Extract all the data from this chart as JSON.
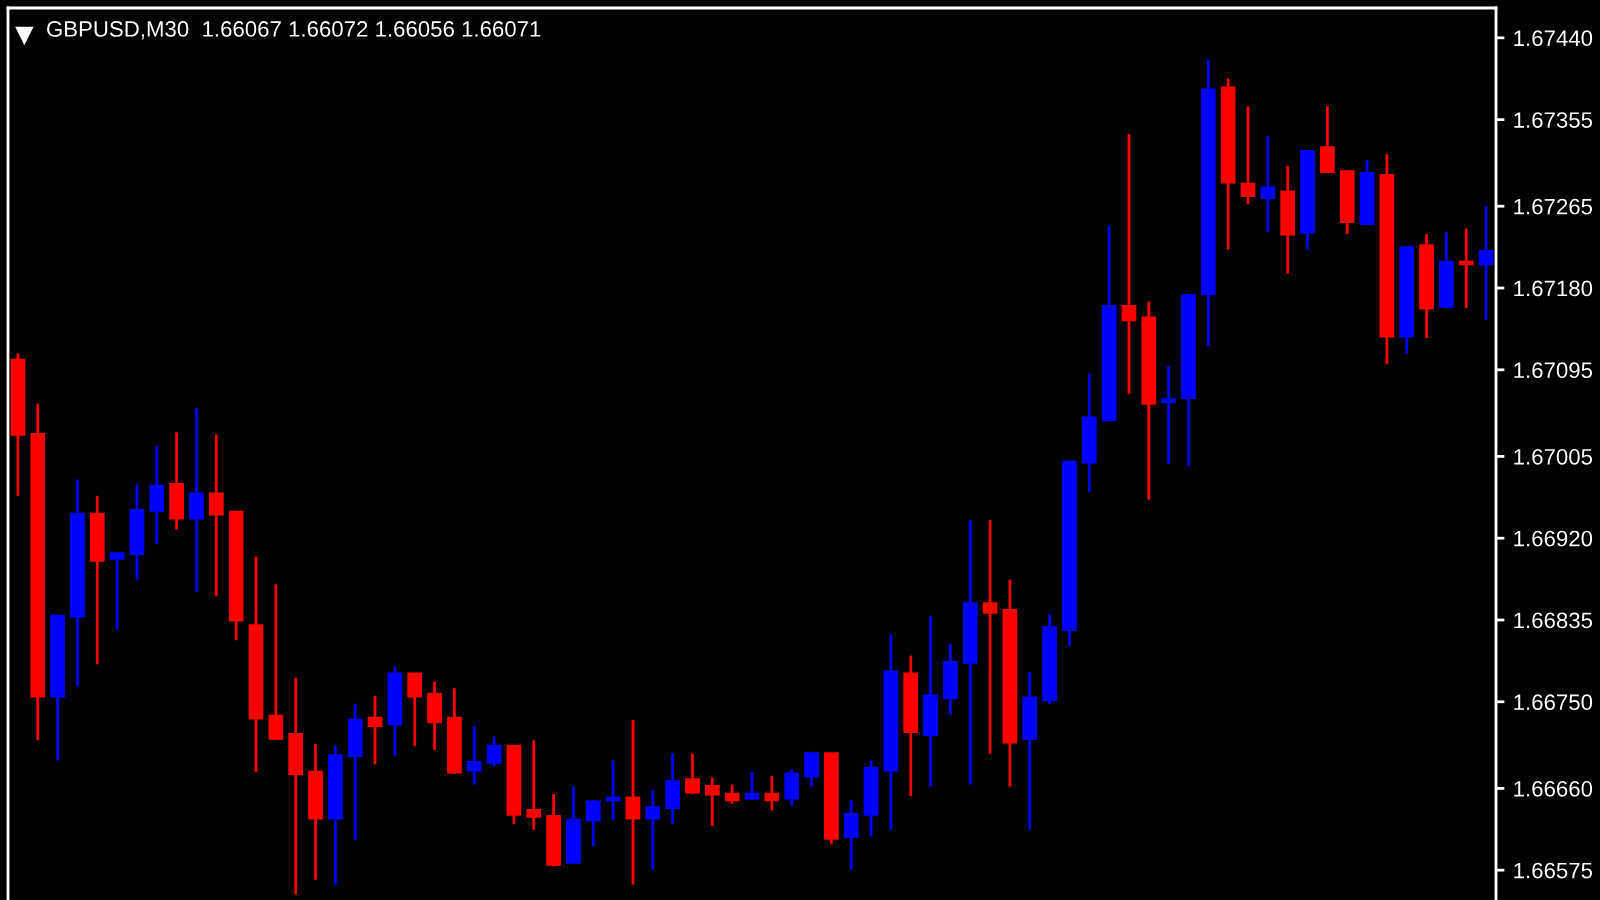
{
  "chart_data": {
    "type": "candlestick",
    "title": "GBPUSD,M30  1.66067 1.66072 1.66056 1.66071",
    "categories": [
      null,
      null,
      null,
      null,
      null,
      null,
      null,
      null,
      null,
      null,
      null,
      null,
      null,
      null,
      null,
      null,
      null,
      null,
      null,
      null,
      null,
      null,
      null,
      null,
      null,
      null,
      null,
      null,
      null,
      null,
      null,
      null,
      null,
      null,
      null,
      null,
      null,
      null,
      null,
      null,
      null,
      null,
      null,
      null,
      null,
      null,
      null,
      null,
      null,
      null,
      null,
      null,
      null,
      null,
      null,
      null,
      null,
      null,
      null,
      null,
      null,
      null,
      null,
      null,
      null,
      null,
      null,
      null,
      null,
      null,
      null,
      null,
      null,
      null,
      null
    ],
    "ohlc": [
      [
        1.67105,
        1.67112,
        1.66964,
        1.67028
      ],
      [
        1.67028,
        1.6706,
        1.6671,
        1.66756
      ],
      [
        1.66756,
        1.66839,
        1.66689,
        1.66839
      ],
      [
        1.66839,
        1.66981,
        1.66766,
        1.66945
      ],
      [
        1.66945,
        1.66964,
        1.66789,
        1.66897
      ],
      [
        1.66899,
        1.66904,
        1.66825,
        1.66904
      ],
      [
        1.66904,
        1.66976,
        1.66877,
        1.66949
      ],
      [
        1.66949,
        1.67016,
        1.66914,
        1.66974
      ],
      [
        1.66976,
        1.6703,
        1.66929,
        1.66941
      ],
      [
        1.66941,
        1.67055,
        1.66864,
        1.66966
      ],
      [
        1.66966,
        1.67028,
        1.6686,
        1.66945
      ],
      [
        1.66947,
        1.66947,
        1.66814,
        1.66835
      ],
      [
        1.66829,
        1.66901,
        1.66677,
        1.66733
      ],
      [
        1.66735,
        1.66872,
        1.66712,
        1.66712
      ],
      [
        1.66716,
        1.66775,
        1.6655,
        1.66675
      ],
      [
        1.66677,
        1.66706,
        1.66565,
        1.66629
      ],
      [
        1.66629,
        1.66704,
        1.6656,
        1.66694
      ],
      [
        1.66694,
        1.66748,
        1.66606,
        1.66731
      ],
      [
        1.66733,
        1.66756,
        1.66685,
        1.66725
      ],
      [
        1.66727,
        1.66787,
        1.66694,
        1.66779
      ],
      [
        1.66779,
        1.66779,
        1.66704,
        1.66756
      ],
      [
        1.66758,
        1.66771,
        1.667,
        1.66729
      ],
      [
        1.66733,
        1.66764,
        1.66675,
        1.66677
      ],
      [
        1.66679,
        1.66725,
        1.66664,
        1.66687
      ],
      [
        1.66687,
        1.66714,
        1.66683,
        1.66704
      ],
      [
        1.66704,
        1.66704,
        1.66623,
        1.66633
      ],
      [
        1.66637,
        1.6671,
        1.66617,
        1.66631
      ],
      [
        1.66631,
        1.66654,
        1.66579,
        1.66581
      ],
      [
        1.66583,
        1.66662,
        1.66583,
        1.66627
      ],
      [
        1.66627,
        1.66648,
        1.666,
        1.66646
      ],
      [
        1.66648,
        1.66689,
        1.66627,
        1.6665
      ],
      [
        1.6665,
        1.66731,
        1.6656,
        1.66629
      ],
      [
        1.66629,
        1.66658,
        1.66575,
        1.6664
      ],
      [
        1.6664,
        1.66696,
        1.66623,
        1.66667
      ],
      [
        1.66669,
        1.66696,
        1.66654,
        1.66656
      ],
      [
        1.66662,
        1.66671,
        1.66621,
        1.66654
      ],
      [
        1.66654,
        1.66664,
        1.66644,
        1.66648
      ],
      [
        1.6665,
        1.66677,
        1.66648,
        1.66654
      ],
      [
        1.66654,
        1.66673,
        1.66637,
        1.66648
      ],
      [
        1.6665,
        1.66679,
        1.66642,
        1.66675
      ],
      [
        1.66673,
        1.66698,
        1.66662,
        1.66696
      ],
      [
        1.66696,
        1.66696,
        1.66602,
        1.66608
      ],
      [
        1.6661,
        1.66648,
        1.66575,
        1.66633
      ],
      [
        1.66633,
        1.66689,
        1.6661,
        1.66681
      ],
      [
        1.66679,
        1.6682,
        1.66617,
        1.66781
      ],
      [
        1.66779,
        1.66798,
        1.66652,
        1.66719
      ],
      [
        1.66716,
        1.66839,
        1.66662,
        1.66756
      ],
      [
        1.66754,
        1.6681,
        1.66737,
        1.66791
      ],
      [
        1.66791,
        1.66939,
        1.66664,
        1.66852
      ],
      [
        1.66852,
        1.66939,
        1.66696,
        1.66843
      ],
      [
        1.66845,
        1.66877,
        1.66662,
        1.66708
      ],
      [
        1.66712,
        1.66781,
        1.66617,
        1.66754
      ],
      [
        1.66752,
        1.66841,
        1.66748,
        1.66827
      ],
      [
        1.66825,
        1.66999,
        1.66808,
        1.66999
      ],
      [
        1.66999,
        1.67091,
        1.66968,
        1.67045
      ],
      [
        1.67043,
        1.67245,
        1.67041,
        1.67161
      ],
      [
        1.67161,
        1.6734,
        1.6707,
        1.67147
      ],
      [
        1.67149,
        1.67166,
        1.6696,
        1.6706
      ],
      [
        1.67062,
        1.67099,
        1.66997,
        1.67064
      ],
      [
        1.67066,
        1.67174,
        1.66995,
        1.67172
      ],
      [
        1.67174,
        1.67417,
        1.6712,
        1.67386
      ],
      [
        1.67388,
        1.67398,
        1.6722,
        1.6729
      ],
      [
        1.67288,
        1.67369,
        1.67267,
        1.67276
      ],
      [
        1.67274,
        1.67338,
        1.67238,
        1.67284
      ],
      [
        1.6728,
        1.67307,
        1.67195,
        1.67236
      ],
      [
        1.67238,
        1.67322,
        1.6722,
        1.67322
      ],
      [
        1.67326,
        1.67369,
        1.67301,
        1.67301
      ],
      [
        1.67301,
        1.67301,
        1.67236,
        1.67249
      ],
      [
        1.67247,
        1.67313,
        1.67247,
        1.67299
      ],
      [
        1.67297,
        1.67319,
        1.67101,
        1.6713
      ],
      [
        1.6713,
        1.67222,
        1.67112,
        1.67222
      ],
      [
        1.67224,
        1.67236,
        1.67128,
        1.67159
      ],
      [
        1.67161,
        1.67238,
        1.67159,
        1.67207
      ],
      [
        1.67207,
        1.67242,
        1.67159,
        1.67205
      ],
      [
        1.67205,
        1.67265,
        1.67147,
        1.67218
      ]
    ],
    "colors": [
      "#ff0000",
      "#ff0000",
      "#0000ff",
      "#0000ff",
      "#ff0000",
      "#0000ff",
      "#0000ff",
      "#0000ff",
      "#ff0000",
      "#0000ff",
      "#ff0000",
      "#ff0000",
      "#ff0000",
      "#ff0000",
      "#ff0000",
      "#ff0000",
      "#0000ff",
      "#0000ff",
      "#ff0000",
      "#0000ff",
      "#ff0000",
      "#ff0000",
      "#ff0000",
      "#0000ff",
      "#0000ff",
      "#ff0000",
      "#ff0000",
      "#ff0000",
      "#0000ff",
      "#0000ff",
      "#0000ff",
      "#ff0000",
      "#0000ff",
      "#0000ff",
      "#ff0000",
      "#ff0000",
      "#ff0000",
      "#0000ff",
      "#ff0000",
      "#0000ff",
      "#0000ff",
      "#ff0000",
      "#0000ff",
      "#0000ff",
      "#0000ff",
      "#ff0000",
      "#0000ff",
      "#0000ff",
      "#0000ff",
      "#ff0000",
      "#ff0000",
      "#0000ff",
      "#0000ff",
      "#0000ff",
      "#0000ff",
      "#0000ff",
      "#ff0000",
      "#ff0000",
      "#0000ff",
      "#0000ff",
      "#0000ff",
      "#ff0000",
      "#ff0000",
      "#0000ff",
      "#ff0000",
      "#0000ff",
      "#ff0000",
      "#ff0000",
      "#0000ff",
      "#ff0000",
      "#0000ff",
      "#ff0000",
      "#0000ff",
      "#ff0000",
      "#0000ff"
    ],
    "ylim": [
      1.66544,
      1.67471
    ],
    "yticks": [
      {
        "value": 1.6744,
        "label": "1.67440"
      },
      {
        "value": 1.67355,
        "label": "1.67355"
      },
      {
        "value": 1.67265,
        "label": "1.67265"
      },
      {
        "value": 1.6718,
        "label": "1.67180"
      },
      {
        "value": 1.67095,
        "label": "1.67095"
      },
      {
        "value": 1.67005,
        "label": "1.67005"
      },
      {
        "value": 1.6692,
        "label": "1.66920"
      },
      {
        "value": 1.66835,
        "label": "1.66835"
      },
      {
        "value": 1.6675,
        "label": "1.66750"
      },
      {
        "value": 1.6666,
        "label": "1.66660"
      },
      {
        "value": 1.66575,
        "label": "1.66575"
      }
    ],
    "tick_labels": "y"
  }
}
